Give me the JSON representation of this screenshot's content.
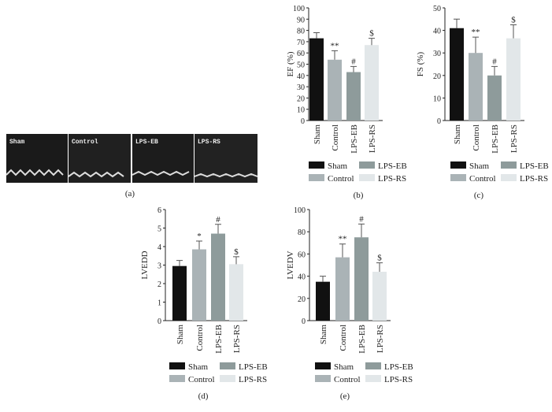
{
  "panel_a": {
    "labels": [
      "Sham",
      "Control",
      "LPS-EB",
      "LPS-RS"
    ],
    "caption": "(a)"
  },
  "chart_data": [
    {
      "type": "bar",
      "caption": "(b)",
      "ylabel": "EF (%)",
      "categories": [
        "Sham",
        "Control",
        "LPS-EB",
        "LPS-RS"
      ],
      "values": [
        73,
        54,
        43,
        67
      ],
      "errors": [
        5,
        8,
        5,
        6
      ],
      "annotations": [
        null,
        "**",
        "#",
        "$"
      ],
      "colors": [
        "#111111",
        "#aab3b6",
        "#8e9b9b",
        "#e2e7e9"
      ],
      "ylim": [
        0,
        100
      ],
      "yticks": [
        0,
        10,
        20,
        30,
        40,
        50,
        60,
        70,
        80,
        90,
        100
      ]
    },
    {
      "type": "bar",
      "caption": "(c)",
      "ylabel": "FS (%)",
      "categories": [
        "Sham",
        "Control",
        "LPS-EB",
        "LPS-RS"
      ],
      "values": [
        41,
        30,
        20,
        36.5
      ],
      "errors": [
        4,
        7,
        4,
        6
      ],
      "annotations": [
        null,
        "**",
        "#",
        "$"
      ],
      "colors": [
        "#111111",
        "#aab3b6",
        "#8e9b9b",
        "#e2e7e9"
      ],
      "ylim": [
        0,
        50
      ],
      "yticks": [
        0,
        10,
        20,
        30,
        40,
        50
      ]
    },
    {
      "type": "bar",
      "caption": "(d)",
      "ylabel": "LVEDD",
      "categories": [
        "Sham",
        "Control",
        "LPS-EB",
        "LPS-RS"
      ],
      "values": [
        2.95,
        3.85,
        4.7,
        3.05
      ],
      "errors": [
        0.3,
        0.45,
        0.5,
        0.4
      ],
      "annotations": [
        null,
        "*",
        "#",
        "$"
      ],
      "colors": [
        "#111111",
        "#aab3b6",
        "#8e9b9b",
        "#e2e7e9"
      ],
      "ylim": [
        0,
        6
      ],
      "yticks": [
        0,
        1,
        2,
        3,
        4,
        5,
        6
      ]
    },
    {
      "type": "bar",
      "caption": "(e)",
      "ylabel": "LVEDV",
      "categories": [
        "Sham",
        "Control",
        "LPS-EB",
        "LPS-RS"
      ],
      "values": [
        35,
        57,
        75,
        44
      ],
      "errors": [
        5,
        12,
        12,
        8
      ],
      "annotations": [
        null,
        "**",
        "#",
        "$"
      ],
      "colors": [
        "#111111",
        "#aab3b6",
        "#8e9b9b",
        "#e2e7e9"
      ],
      "ylim": [
        0,
        100
      ],
      "yticks": [
        0,
        20,
        40,
        60,
        80,
        100
      ]
    }
  ]
}
